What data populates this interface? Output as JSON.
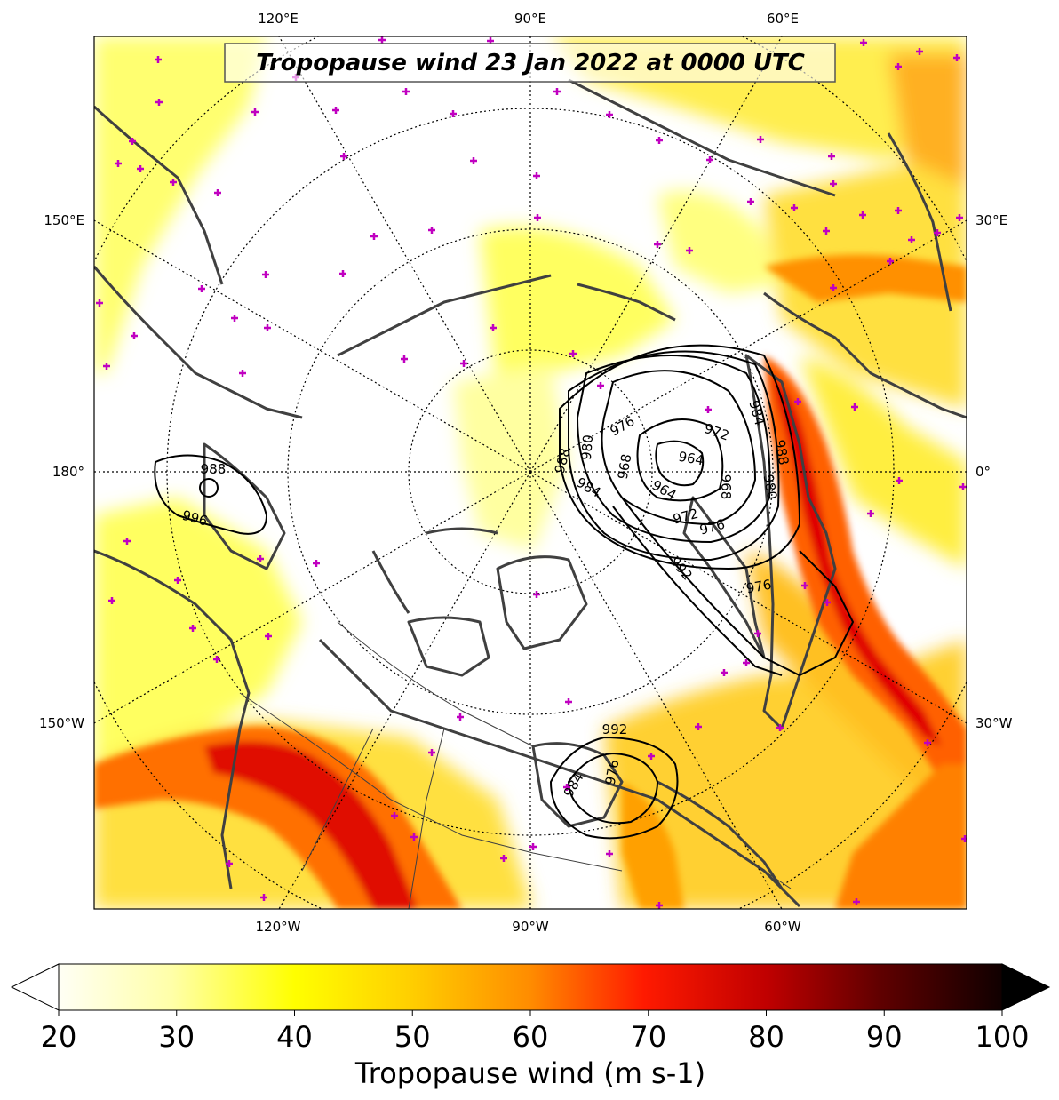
{
  "title": "Tropopause wind 23 Jan 2022 at 0000 UTC",
  "longitude_labels": {
    "top": [
      "120°E",
      "90°E",
      "60°E"
    ],
    "bottom": [
      "120°W",
      "90°W",
      "60°W"
    ],
    "left": [
      "150°E",
      "180°",
      "150°W"
    ],
    "right": [
      "30°E",
      "0°",
      "30°W"
    ]
  },
  "colorbar": {
    "label": "Tropopause wind (m s-1)",
    "ticks": [
      "20",
      "30",
      "40",
      "50",
      "60",
      "70",
      "80",
      "90",
      "100"
    ],
    "range": [
      20,
      100
    ],
    "extend": "both",
    "colormap": [
      "#ffffff",
      "#ffffa0",
      "#ffff00",
      "#ffd000",
      "#ff9000",
      "#ff4000",
      "#ff0000",
      "#c00000",
      "#800000",
      "#400000",
      "#000000"
    ]
  },
  "contour_labels": [
    "988",
    "996",
    "976",
    "972",
    "964",
    "984",
    "980",
    "988",
    "968",
    "964",
    "968",
    "972",
    "976",
    "988",
    "980",
    "984",
    "992",
    "976",
    "992",
    "984",
    "976"
  ],
  "colors": {
    "coast": "#404040",
    "markers": "#c000c0",
    "contours": "#000000"
  }
}
